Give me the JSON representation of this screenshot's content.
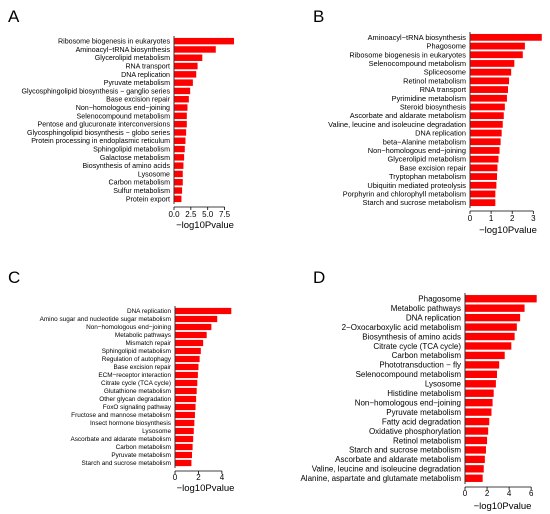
{
  "colors": {
    "bar": "#ff0000",
    "axis": "#000000",
    "background": "#ffffff"
  },
  "chart_data": [
    {
      "panel": "A",
      "type": "bar",
      "orientation": "horizontal",
      "categories": [
        "Ribosome biogenesis in eukaryotes",
        "Aminoacyl−tRNA biosynthesis",
        "Glycerolipid metabolism",
        "RNA transport",
        "DNA replication",
        "Pyruvate metabolism",
        "Glycosphingolipid biosynthesis − ganglio series",
        "Base excision repair",
        "Non−homologous end−joining",
        "Selenocompound metabolism",
        "Pentose and glucuronate interconversions",
        "Glycosphingolipid biosynthesis − globo series",
        "Protein processing in endoplasmic reticulum",
        "Sphingolipid metabolism",
        "Galactose metabolism",
        "Biosynthesis of amino acids",
        "Lysosome",
        "Carbon metabolism",
        "Sulfur metabolism",
        "Protein export"
      ],
      "values": [
        8.9,
        6.2,
        4.2,
        3.5,
        3.3,
        2.8,
        2.4,
        2.2,
        2.0,
        1.9,
        1.9,
        1.8,
        1.7,
        1.6,
        1.5,
        1.4,
        1.3,
        1.3,
        1.2,
        1.1
      ],
      "xlim": [
        0,
        9.2
      ],
      "xticks": [
        0,
        2.5,
        5,
        7.5
      ],
      "xtick_labels": [
        "0.0",
        "2.5",
        "5.0",
        "7.5"
      ],
      "xlabel": "−log10Pvalue",
      "ylabel": ""
    },
    {
      "panel": "B",
      "type": "bar",
      "orientation": "horizontal",
      "categories": [
        "Aminoacyl−tRNA biosynthesis",
        "Phagosome",
        "Ribosome biogenesis in eukaryotes",
        "Selenocompound metabolism",
        "Spliceosome",
        "Retinol metabolism",
        "RNA transport",
        "Pyrimidine metabolism",
        "Steroid biosynthesis",
        "Ascorbate and aldarate metabolism",
        "Valine, leucine and isoleucine degradation",
        "DNA replication",
        "beta−Alanine metabolism",
        "Non−homologous end−joining",
        "Glycerolipid metabolism",
        "Base excision repair",
        "Tryptophan metabolism",
        "Ubiquitin mediated proteolysis",
        "Porphyrin and chlorophyll metabolism",
        "Starch and sucrose metabolism"
      ],
      "values": [
        3.4,
        2.6,
        2.5,
        2.1,
        1.95,
        1.85,
        1.8,
        1.75,
        1.65,
        1.6,
        1.55,
        1.5,
        1.45,
        1.4,
        1.35,
        1.3,
        1.28,
        1.25,
        1.2,
        1.2
      ],
      "xlim": [
        0,
        3.6
      ],
      "xticks": [
        0,
        1,
        2,
        3
      ],
      "xtick_labels": [
        "0",
        "1",
        "2",
        "3"
      ],
      "xlabel": "−log10Pvalue",
      "ylabel": ""
    },
    {
      "panel": "C",
      "type": "bar",
      "orientation": "horizontal",
      "categories": [
        "DNA replication",
        "Amino sugar and nucleotide sugar metabolism",
        "Non−homologous end−joining",
        "Metabolic pathways",
        "Mismatch repair",
        "Sphingolipid metabolism",
        "Regulation of autophagy",
        "Base excision repair",
        "ECM−receptor interaction",
        "Citrate cycle (TCA cycle)",
        "Glutathione metabolism",
        "Other glycan degradation",
        "FoxO signaling pathway",
        "Fructose and mannose metabolism",
        "Insect hormone biosynthesis",
        "Lysosome",
        "Ascorbate and aldarate metabolism",
        "Carbon metabolism",
        "Pyruvate metabolism",
        "Starch and sucrose metabolism"
      ],
      "values": [
        4.8,
        3.6,
        3.1,
        2.7,
        2.4,
        2.2,
        2.1,
        2.0,
        1.95,
        1.9,
        1.85,
        1.8,
        1.75,
        1.7,
        1.65,
        1.6,
        1.55,
        1.5,
        1.45,
        1.4
      ],
      "xlim": [
        0,
        5.2
      ],
      "xticks": [
        0,
        2,
        4
      ],
      "xtick_labels": [
        "0",
        "2",
        "4"
      ],
      "xlabel": "−log10Pvalue",
      "ylabel": ""
    },
    {
      "panel": "D",
      "type": "bar",
      "orientation": "horizontal",
      "categories": [
        "Phagosome",
        "Metabolic pathways",
        "DNA replication",
        "2−Oxocarboxylic acid metabolism",
        "Biosynthesis of amino acids",
        "Citrate cycle (TCA cycle)",
        "Carbon metabolism",
        "Phototransduction − fly",
        "Selenocompound metabolism",
        "Lysosome",
        "Histidine metabolism",
        "Non−homologous end−joining",
        "Pyruvate metabolism",
        "Fatty acid degradation",
        "Oxidative phosphorylation",
        "Retinol metabolism",
        "Starch and sucrose metabolism",
        "Ascorbate and aldarate metabolism",
        "Valine, leucine and isoleucine degradation",
        "Alanine, aspartate and glutamate metabolism"
      ],
      "values": [
        6.5,
        5.4,
        5.0,
        4.7,
        4.5,
        4.2,
        3.6,
        3.1,
        2.9,
        2.8,
        2.6,
        2.5,
        2.4,
        2.2,
        2.1,
        2.0,
        1.9,
        1.8,
        1.7,
        1.6
      ],
      "xlim": [
        0,
        6.8
      ],
      "xticks": [
        0,
        2,
        4,
        6
      ],
      "xtick_labels": [
        "0",
        "2",
        "4",
        "6"
      ],
      "xlabel": "−log10Pvalue",
      "ylabel": ""
    }
  ]
}
